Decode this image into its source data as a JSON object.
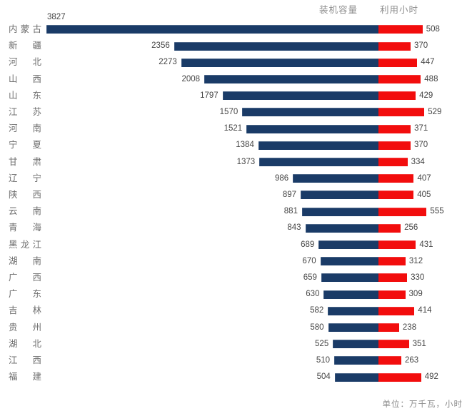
{
  "legend": {
    "capacity_label": "装机容量",
    "hours_label": "利用小时"
  },
  "footer": {
    "unit_note": "单位：万千瓦，小时"
  },
  "chart_data": {
    "type": "bar",
    "subtype": "diverging-horizontal",
    "title": "",
    "xlabel": "",
    "ylabel": "",
    "grid": false,
    "legend_position": "top-right",
    "categories": [
      "内蒙古",
      "新疆",
      "河北",
      "山西",
      "山东",
      "江苏",
      "河南",
      "宁夏",
      "甘肃",
      "辽宁",
      "陕西",
      "云南",
      "青海",
      "黑龙江",
      "湖南",
      "广西",
      "广东",
      "吉林",
      "贵州",
      "湖北",
      "江西",
      "福建"
    ],
    "series": [
      {
        "name": "装机容量",
        "direction": "left",
        "color": "#1A3B67",
        "values": [
          3827,
          2356,
          2273,
          2008,
          1797,
          1570,
          1521,
          1384,
          1373,
          986,
          897,
          881,
          843,
          689,
          670,
          659,
          630,
          582,
          580,
          525,
          510,
          504
        ]
      },
      {
        "name": "利用小时",
        "direction": "right",
        "color": "#F20D0D",
        "values": [
          508,
          370,
          447,
          488,
          429,
          529,
          371,
          370,
          334,
          407,
          405,
          555,
          256,
          431,
          312,
          330,
          309,
          414,
          238,
          351,
          263,
          492
        ]
      }
    ],
    "unit_note": "单位：万千瓦，小时",
    "value_range_left": [
      0,
      3827
    ],
    "value_range_right": [
      0,
      555
    ]
  }
}
